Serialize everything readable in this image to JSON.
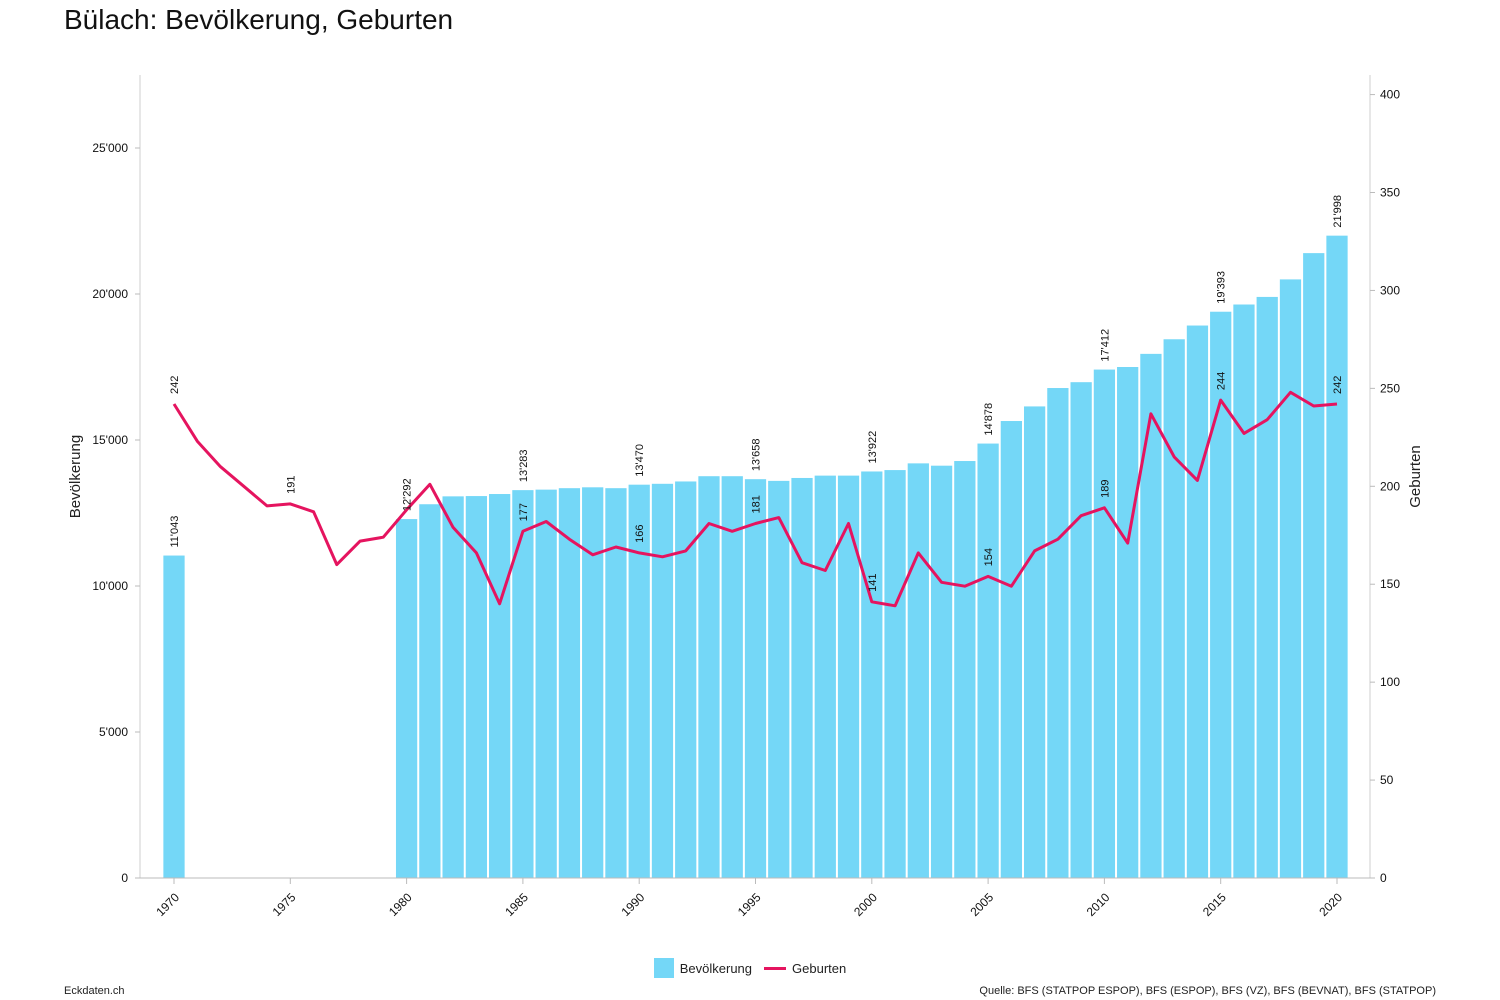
{
  "title": "Bülach: Bevölkerung, Geburten",
  "footer": {
    "left": "Eckdaten.ch",
    "right": "Quelle: BFS (STATPOP ESPOP), BFS (ESPOP), BFS (VZ), BFS (BEVNAT), BFS (STATPOP)"
  },
  "legend": [
    {
      "label": "Bevölkerung",
      "color": "#74d7f7",
      "kind": "bar"
    },
    {
      "label": "Geburten",
      "color": "#e5145f",
      "kind": "line"
    }
  ],
  "chart_data": {
    "type": "bar+line",
    "title": "Bülach: Bevölkerung, Geburten",
    "x": [
      1970,
      1971,
      1972,
      1973,
      1974,
      1975,
      1976,
      1977,
      1978,
      1979,
      1980,
      1981,
      1982,
      1983,
      1984,
      1985,
      1986,
      1987,
      1988,
      1989,
      1990,
      1991,
      1992,
      1993,
      1994,
      1995,
      1996,
      1997,
      1998,
      1999,
      2000,
      2001,
      2002,
      2003,
      2004,
      2005,
      2006,
      2007,
      2008,
      2009,
      2010,
      2011,
      2012,
      2013,
      2014,
      2015,
      2016,
      2017,
      2018,
      2019,
      2020
    ],
    "x_tick_labels": [
      "1970",
      "1975",
      "1980",
      "1985",
      "1990",
      "1995",
      "2000",
      "2005",
      "2010",
      "2015",
      "2020"
    ],
    "y_left": {
      "label": "Bevölkerung",
      "range": [
        0,
        27500
      ],
      "ticks": [
        0,
        5000,
        10000,
        15000,
        20000,
        25000
      ],
      "tick_labels": [
        "0",
        "5'000",
        "10'000",
        "15'000",
        "20'000",
        "25'000"
      ]
    },
    "y_right": {
      "label": "Geburten",
      "range": [
        0,
        410
      ],
      "ticks": [
        0,
        50,
        100,
        150,
        200,
        250,
        300,
        350,
        400
      ],
      "tick_labels": [
        "0",
        "50",
        "100",
        "150",
        "200",
        "250",
        "300",
        "350",
        "400"
      ]
    },
    "legend_position": "bottom",
    "grid": false,
    "series": [
      {
        "name": "Bevölkerung",
        "type": "bar",
        "axis": "left",
        "color": "#74d7f7",
        "values": [
          11043,
          null,
          null,
          null,
          null,
          null,
          null,
          null,
          null,
          null,
          12292,
          12800,
          13070,
          13080,
          13150,
          13283,
          13300,
          13350,
          13380,
          13350,
          13470,
          13500,
          13580,
          13760,
          13760,
          13658,
          13600,
          13700,
          13780,
          13780,
          13922,
          13970,
          14200,
          14120,
          14280,
          14878,
          15650,
          16150,
          16780,
          16980,
          17412,
          17500,
          17950,
          18450,
          18920,
          19393,
          19640,
          19900,
          20500,
          21400,
          21998
        ],
        "labels": [
          {
            "x": 1970,
            "text": "11'043"
          },
          {
            "x": 1980,
            "text": "12'292"
          },
          {
            "x": 1985,
            "text": "13'283"
          },
          {
            "x": 1990,
            "text": "13'470"
          },
          {
            "x": 1995,
            "text": "13'658"
          },
          {
            "x": 2000,
            "text": "13'922"
          },
          {
            "x": 2005,
            "text": "14'878"
          },
          {
            "x": 2010,
            "text": "17'412"
          },
          {
            "x": 2015,
            "text": "19'393"
          },
          {
            "x": 2020,
            "text": "21'998"
          }
        ]
      },
      {
        "name": "Geburten",
        "type": "line",
        "axis": "right",
        "color": "#e5145f",
        "values": [
          242,
          223,
          210,
          200,
          190,
          191,
          187,
          160,
          172,
          174,
          188,
          201,
          179,
          166,
          140,
          177,
          182,
          173,
          165,
          169,
          166,
          164,
          167,
          181,
          177,
          181,
          184,
          161,
          157,
          181,
          141,
          139,
          166,
          151,
          149,
          154,
          149,
          167,
          173,
          185,
          189,
          171,
          237,
          215,
          203,
          244,
          227,
          234,
          248,
          241,
          242
        ],
        "labels": [
          {
            "x": 1970,
            "text": "242"
          },
          {
            "x": 1975,
            "text": "191"
          },
          {
            "x": 1985,
            "text": "177"
          },
          {
            "x": 1990,
            "text": "166"
          },
          {
            "x": 1995,
            "text": "181"
          },
          {
            "x": 2000,
            "text": "141"
          },
          {
            "x": 2005,
            "text": "154"
          },
          {
            "x": 2010,
            "text": "189"
          },
          {
            "x": 2015,
            "text": "244"
          },
          {
            "x": 2020,
            "text": "242"
          }
        ]
      }
    ]
  }
}
